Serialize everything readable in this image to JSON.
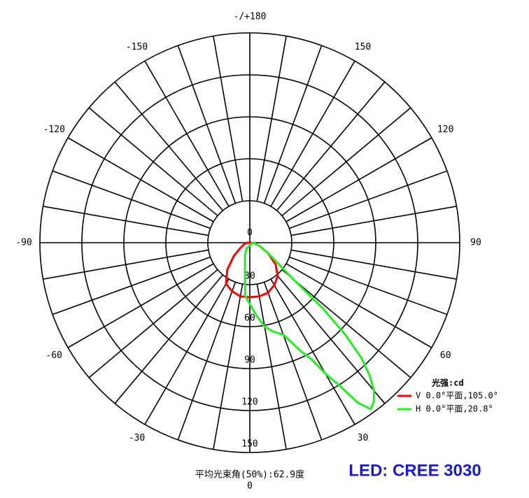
{
  "chart_data": {
    "type": "polar",
    "subtitle": "平均光束角(50%):62.9度",
    "annotation": "LED: CREE 3030",
    "legend_title": "光强:cd",
    "xlim": [
      -180,
      180
    ],
    "xticks": [
      {
        "value": 180,
        "label": "-/+180"
      },
      150,
      120,
      90,
      60,
      30,
      0,
      -30,
      -60,
      -90,
      -120,
      -150
    ],
    "xminorticks": [
      -170,
      -160,
      -140,
      -130,
      -110,
      -100,
      -80,
      -70,
      -50,
      -40,
      -20,
      -10,
      10,
      20,
      40,
      50,
      70,
      80,
      100,
      110,
      130,
      140,
      160,
      170
    ],
    "ylim": [
      0,
      150
    ],
    "yticks": [
      0,
      30,
      60,
      90,
      120,
      150
    ],
    "series": [
      {
        "name": "V 0.0°平面,105.0°",
        "color": "#ff0000",
        "x": [
          -90,
          -80,
          -70,
          -60,
          -50,
          -40,
          -30,
          -20,
          -10,
          0,
          10,
          20,
          30,
          40,
          50,
          60,
          70,
          80,
          90
        ],
        "values": [
          2,
          3,
          5,
          8,
          15,
          25,
          34,
          37,
          39,
          39,
          39,
          38,
          35,
          31,
          24,
          15,
          8,
          4,
          2
        ]
      },
      {
        "name": "H 0.0°平面,20.8°",
        "color": "#22ee22",
        "x": [
          -30,
          -20,
          -10,
          -5,
          0,
          5,
          10,
          15,
          20,
          25,
          28,
          30,
          32,
          34,
          36,
          38,
          40,
          42,
          44,
          46,
          48,
          50,
          55,
          60,
          70,
          80,
          90
        ],
        "values": [
          5,
          10,
          20,
          38,
          44,
          52,
          61,
          66,
          70,
          85,
          95,
          108,
          120,
          138,
          147,
          144,
          138,
          128,
          115,
          95,
          70,
          40,
          22,
          15,
          8,
          4,
          2
        ]
      }
    ]
  }
}
